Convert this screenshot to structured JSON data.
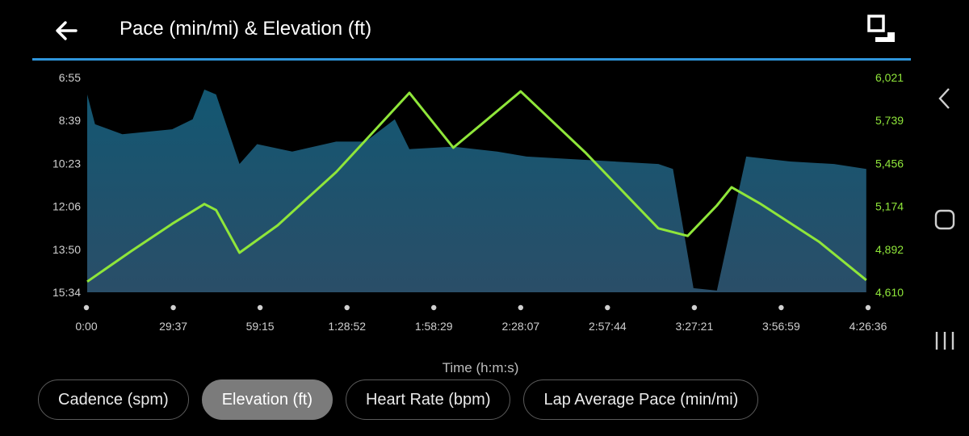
{
  "header": {
    "title": "Pace (min/mi) & Elevation (ft)",
    "back_icon": "arrow-left-icon",
    "expand_icon": "expand-icon",
    "accent_color": "#2f95db"
  },
  "chart_data": {
    "type": "area",
    "xlabel": "Time (h:m:s)",
    "x_ticks": [
      "0:00",
      "29:37",
      "59:15",
      "1:28:52",
      "1:58:29",
      "2:28:07",
      "2:57:44",
      "3:27:21",
      "3:56:59",
      "4:26:36"
    ],
    "x_range_seconds": [
      0,
      15996
    ],
    "left_axis": {
      "label": "Pace (min/mi)",
      "ticks": [
        "6:55",
        "8:39",
        "10:23",
        "12:06",
        "13:50",
        "15:34"
      ],
      "range": [
        "6:55",
        "15:34"
      ],
      "color": "#cccccc"
    },
    "right_axis": {
      "label": "Elevation (ft)",
      "ticks": [
        "6,021",
        "5,739",
        "5,456",
        "5,174",
        "4,892",
        "4,610"
      ],
      "range": [
        4610,
        6021
      ],
      "color": "#8fe63a"
    },
    "series": [
      {
        "name": "Pace (min/mi)",
        "type": "area",
        "color": "#1d5e7e",
        "x_time": [
          "0:00",
          "2:40",
          "12:00",
          "29:00",
          "36:00",
          "40:00",
          "44:00",
          "52:00",
          "58:00",
          "1:10:00",
          "1:25:00",
          "1:35:00",
          "1:45:00",
          "1:50:00",
          "2:05:00",
          "2:20:00",
          "2:30:00",
          "2:45:00",
          "3:00:00",
          "3:15:00",
          "3:20:00",
          "3:27:00",
          "3:35:00",
          "3:45:00",
          "4:00:00",
          "4:15:00",
          "4:26:00"
        ],
        "pace_min_per_mi": [
          7.6,
          8.8,
          9.2,
          9.0,
          8.6,
          7.4,
          7.6,
          10.4,
          9.6,
          9.9,
          9.5,
          9.5,
          8.6,
          9.8,
          9.7,
          9.9,
          10.1,
          10.2,
          10.3,
          10.4,
          10.6,
          15.4,
          15.5,
          10.1,
          10.3,
          10.4,
          10.6
        ]
      },
      {
        "name": "Elevation (ft)",
        "type": "line",
        "color": "#8fe63a",
        "x_time": [
          "0:00",
          "15:00",
          "29:00",
          "40:00",
          "44:00",
          "52:00",
          "1:05:00",
          "1:25:00",
          "1:50:00",
          "2:05:00",
          "2:15:00",
          "2:28:00",
          "2:50:00",
          "3:15:00",
          "3:25:00",
          "3:35:00",
          "3:40:00",
          "3:50:00",
          "4:10:00",
          "4:26:00"
        ],
        "elevation_ft": [
          4680,
          4880,
          5060,
          5190,
          5150,
          4870,
          5050,
          5400,
          5920,
          5560,
          5720,
          5930,
          5530,
          5030,
          4980,
          5180,
          5300,
          5190,
          4940,
          4690
        ]
      }
    ]
  },
  "filters": [
    {
      "label": "Cadence (spm)",
      "active": false
    },
    {
      "label": "Elevation (ft)",
      "active": true
    },
    {
      "label": "Heart Rate (bpm)",
      "active": false
    },
    {
      "label": "Lap Average Pace (min/mi)",
      "active": false
    }
  ],
  "system_nav": {
    "back_icon": "chevron-left-icon",
    "home_icon": "home-icon",
    "recents_icon": "recents-icon"
  }
}
